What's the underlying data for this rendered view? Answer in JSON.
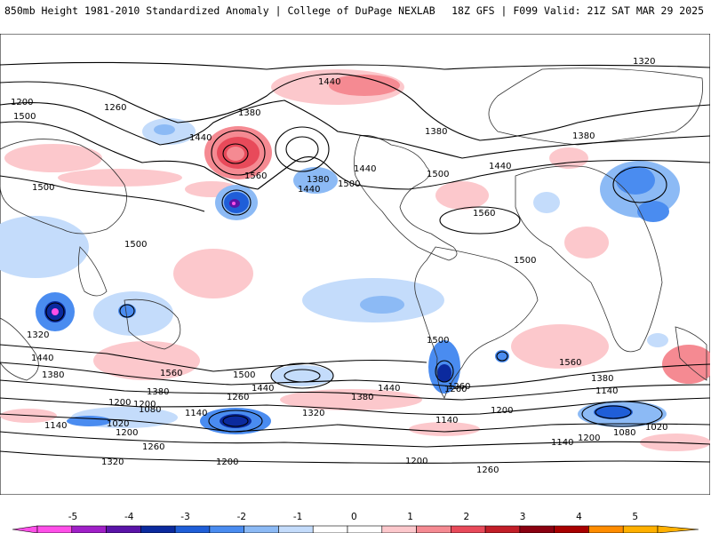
{
  "header": {
    "left": "850mb Height 1981-2010 Standardized Anomaly | College of DuPage NEXLAB",
    "right": "18Z GFS | F099 Valid: 21Z SAT MAR 29 2025"
  },
  "contour_labels": [
    "1320",
    "1440",
    "1200",
    "1260",
    "1380",
    "1560",
    "1500",
    "1440",
    "1380",
    "1440",
    "1380",
    "1500",
    "1440",
    "1380",
    "1440",
    "1560",
    "1500",
    "1500",
    "1500",
    "1500",
    "1440",
    "1380",
    "1320",
    "1560",
    "1500",
    "1500",
    "1560",
    "1440",
    "1440",
    "1380",
    "1260",
    "1320",
    "1380",
    "1200",
    "1140",
    "1200",
    "1260",
    "1080",
    "1020",
    "1200",
    "1140",
    "1140",
    "1140",
    "1080",
    "1020",
    "1380",
    "1200",
    "1200",
    "1140",
    "1260",
    "1260",
    "1200",
    "1200",
    "1320",
    "1260"
  ],
  "colorbar": {
    "ticks": [
      "-5",
      "-4",
      "-3",
      "-2",
      "-1",
      "0",
      "1",
      "2",
      "3",
      "4",
      "5"
    ],
    "colors": [
      "#ff4fe8",
      "#a020c8",
      "#5a14a8",
      "#0b2a9e",
      "#1f5ed8",
      "#4a8cf0",
      "#8cbaf5",
      "#c4dcfb",
      "#ffffff",
      "#ffffff",
      "#fcc8cc",
      "#f58a92",
      "#e84a5a",
      "#c21e28",
      "#8a0010",
      "#a80000",
      "#ff8c00",
      "#ffb000"
    ]
  }
}
